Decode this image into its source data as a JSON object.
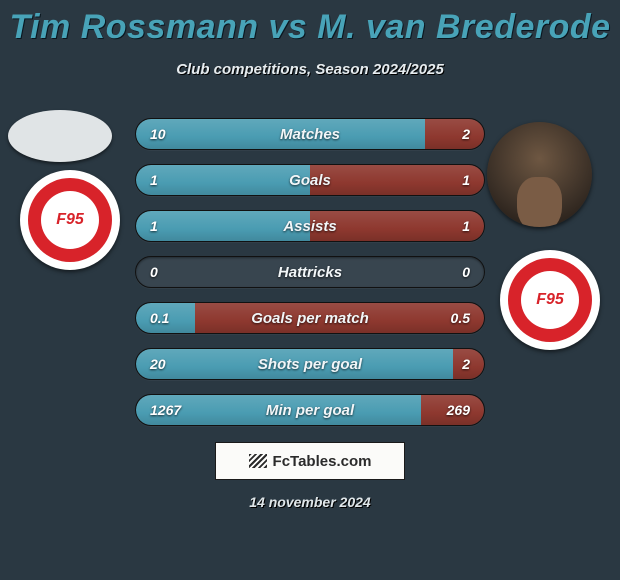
{
  "title": "Tim Rossmann vs M. van Brederode",
  "subtitle": "Club competitions, Season 2024/2025",
  "title_color": "#48a3b8",
  "background_color": "#2a3842",
  "left_bar_color": "#4a9cb2",
  "right_bar_color": "#8e382f",
  "track_color": "#38454f",
  "club_badge_text": "F95",
  "club_badge_primary": "#d8232a",
  "club_badge_secondary": "#ffffff",
  "footer_brand": "FcTables.com",
  "footer_date": "14 november 2024",
  "stats": [
    {
      "label": "Matches",
      "left_val": "10",
      "right_val": "2",
      "left_pct": 83,
      "right_pct": 17
    },
    {
      "label": "Goals",
      "left_val": "1",
      "right_val": "1",
      "left_pct": 50,
      "right_pct": 50
    },
    {
      "label": "Assists",
      "left_val": "1",
      "right_val": "1",
      "left_pct": 50,
      "right_pct": 50
    },
    {
      "label": "Hattricks",
      "left_val": "0",
      "right_val": "0",
      "left_pct": 0,
      "right_pct": 0
    },
    {
      "label": "Goals per match",
      "left_val": "0.1",
      "right_val": "0.5",
      "left_pct": 17,
      "right_pct": 83
    },
    {
      "label": "Shots per goal",
      "left_val": "20",
      "right_val": "2",
      "left_pct": 91,
      "right_pct": 9
    },
    {
      "label": "Min per goal",
      "left_val": "1267",
      "right_val": "269",
      "left_pct": 82,
      "right_pct": 18
    }
  ]
}
